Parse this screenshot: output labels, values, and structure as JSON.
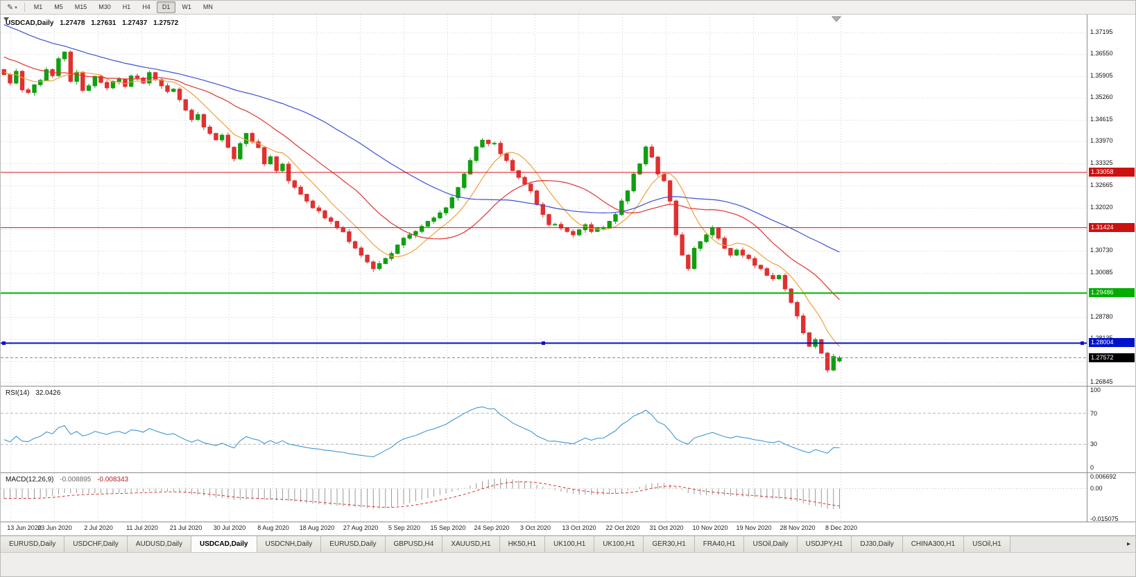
{
  "toolbar": {
    "drawing_tool_icon": "pencil-icon",
    "timeframes": [
      "M1",
      "M5",
      "M15",
      "M30",
      "H1",
      "H4",
      "D1",
      "W1",
      "MN"
    ],
    "active_timeframe": "D1"
  },
  "chart": {
    "symbol_period": "USDCAD,Daily",
    "ohlc": {
      "open": "1.27478",
      "high": "1.27631",
      "low": "1.27437",
      "close": "1.27572"
    }
  },
  "price_axis": {
    "ticks": [
      "1.37195",
      "1.36550",
      "1.35905",
      "1.35260",
      "1.34615",
      "1.33970",
      "1.33325",
      "1.32665",
      "1.32020",
      "1.31375",
      "1.30730",
      "1.30085",
      "1.29440",
      "1.28780",
      "1.28135",
      "1.27490",
      "1.26845"
    ],
    "badges": [
      {
        "text": "1.33058",
        "price": 1.33058,
        "color": "#cc1111"
      },
      {
        "text": "1.31424",
        "price": 1.31424,
        "color": "#cc1111"
      },
      {
        "text": "1.29486",
        "price": 1.29486,
        "color": "#00ad00"
      },
      {
        "text": "1.28004",
        "price": 1.28004,
        "color": "#0011cc"
      }
    ],
    "current_badge": {
      "text": "1.27572",
      "price": 1.27572,
      "color": "#000000"
    }
  },
  "time_axis": {
    "dates": [
      "13 Jun 2020",
      "23 Jun 2020",
      "2 Jul 2020",
      "11 Jul 2020",
      "21 Jul 2020",
      "30 Jul 2020",
      "8 Aug 2020",
      "18 Aug 2020",
      "27 Aug 2020",
      "5 Sep 2020",
      "15 Sep 2020",
      "24 Sep 2020",
      "3 Oct 2020",
      "13 Oct 2020",
      "22 Oct 2020",
      "31 Oct 2020",
      "10 Nov 2020",
      "19 Nov 2020",
      "28 Nov 2020",
      "8 Dec 2020"
    ]
  },
  "rsi": {
    "label": "RSI(14)",
    "value": "32.0426",
    "axis_labels": [
      "100",
      "70",
      "30",
      "0"
    ],
    "levels": [
      70,
      30
    ],
    "line_color": "#3c96d2"
  },
  "macd": {
    "label": "MACD(12,26,9)",
    "value_main": "-0.008895",
    "value_signal": "-0.008343",
    "axis_labels": [
      "0.006692",
      "0.00",
      "-0.015075"
    ],
    "histogram_color": "#9a9a9a",
    "signal_color": "#d23333"
  },
  "tabs": {
    "items": [
      "EURUSD,Daily",
      "USDCHF,Daily",
      "AUDUSD,Daily",
      "USDCAD,Daily",
      "USDCNH,Daily",
      "EURUSD,Daily",
      "GBPUSD,H4",
      "XAUUSD,H1",
      "HK50,H1",
      "UK100,H1",
      "UK100,H1",
      "GER30,H1",
      "FRA40,H1",
      "USOil,Daily",
      "USDJPY,H1",
      "DJ30,Daily",
      "CHINA300,H1",
      "USOil,H1"
    ],
    "active_index": 3,
    "scroll_right_icon": "right-arrow-icon"
  },
  "chart_data": {
    "type": "candlestick",
    "symbol": "USDCAD",
    "period": "Daily",
    "current_ohlc": {
      "open": 1.27478,
      "high": 1.27631,
      "low": 1.27437,
      "close": 1.27572
    },
    "price_top": 1.37195,
    "price_bottom": 1.26845,
    "up_color": "#119f11",
    "down_color": "#e03030",
    "closes": [
      1.3595,
      1.357,
      1.3605,
      1.355,
      1.3542,
      1.3565,
      1.3578,
      1.361,
      1.3592,
      1.3642,
      1.3662,
      1.3575,
      1.3602,
      1.3548,
      1.3562,
      1.359,
      1.3572,
      1.3556,
      1.3575,
      1.3582,
      1.356,
      1.3591,
      1.3585,
      1.357,
      1.3601,
      1.358,
      1.3562,
      1.3545,
      1.3552,
      1.3521,
      1.349,
      1.3462,
      1.3477,
      1.344,
      1.3421,
      1.3402,
      1.3416,
      1.338,
      1.3346,
      1.3391,
      1.3421,
      1.3396,
      1.3379,
      1.3331,
      1.3352,
      1.3311,
      1.333,
      1.3281,
      1.3262,
      1.3241,
      1.3221,
      1.3201,
      1.3192,
      1.3171,
      1.3161,
      1.3142,
      1.313,
      1.3101,
      1.3082,
      1.3061,
      1.3041,
      1.3021,
      1.3036,
      1.3051,
      1.3066,
      1.3091,
      1.3111,
      1.3121,
      1.3131,
      1.3146,
      1.3161,
      1.3171,
      1.3186,
      1.3201,
      1.3231,
      1.3261,
      1.3301,
      1.3341,
      1.3381,
      1.3401,
      1.3391,
      1.3392,
      1.3361,
      1.3341,
      1.3311,
      1.3291,
      1.3271,
      1.3251,
      1.3211,
      1.3181,
      1.3151,
      1.3152,
      1.3141,
      1.3131,
      1.3121,
      1.3136,
      1.3151,
      1.3131,
      1.3141,
      1.3142,
      1.3161,
      1.3181,
      1.3221,
      1.3251,
      1.3301,
      1.3331,
      1.3381,
      1.3351,
      1.3301,
      1.3281,
      1.3221,
      1.3121,
      1.3061,
      1.3021,
      1.3081,
      1.3101,
      1.3121,
      1.3141,
      1.3111,
      1.3081,
      1.3061,
      1.3076,
      1.3061,
      1.3051,
      1.3031,
      1.3021,
      1.3001,
      1.2991,
      1.3001,
      1.2961,
      1.2921,
      1.2881,
      1.2831,
      1.2791,
      1.2811,
      1.2771,
      1.2721,
      1.2761,
      1.27572
    ],
    "moving_averages": [
      {
        "period": 8,
        "color": "#f0a03a"
      },
      {
        "period": 20,
        "color": "#e03030"
      },
      {
        "period": 45,
        "color": "#3a50d0"
      }
    ],
    "hlines": [
      {
        "price": 1.33058,
        "color": "#dd1111",
        "width": 1
      },
      {
        "price": 1.31424,
        "color": "#dd1111",
        "width": 1
      },
      {
        "price": 1.29486,
        "color": "#00b800",
        "width": 2
      },
      {
        "price": 1.28004,
        "color": "#0011cc",
        "width": 2,
        "selected": true
      }
    ],
    "current_price": 1.27572,
    "indicators": {
      "rsi": {
        "period": 14,
        "current": 32.0426,
        "levels": [
          70,
          30
        ]
      },
      "macd": {
        "fast": 12,
        "slow": 26,
        "signal": 9,
        "current_macd": -0.008895,
        "current_signal": -0.008343,
        "range": [
          0.006692,
          -0.015075
        ]
      }
    }
  }
}
